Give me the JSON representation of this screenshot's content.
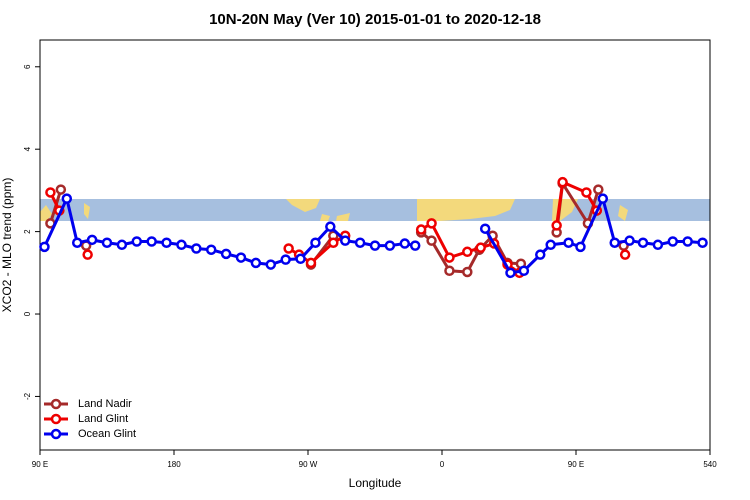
{
  "chart_data": {
    "type": "line",
    "title": "10N-20N May (Ver 10)   2015-01-01 to 2020-12-18",
    "xlabel": "Longitude",
    "ylabel": "XCO2 - MLO trend (ppm)",
    "xlim": [
      90,
      540
    ],
    "ylim": [
      -3.3,
      6.65
    ],
    "xticks": [
      {
        "value": 90,
        "label": "90 E"
      },
      180,
      {
        "value": 270,
        "label": "90 W"
      },
      {
        "value": 360,
        "label": "0"
      },
      {
        "value": 450,
        "label": "90 E"
      },
      540
    ],
    "yticks": [
      -2,
      0,
      2,
      4,
      6
    ],
    "legend": "lower left",
    "series": [
      {
        "name": "Land Nadir",
        "color": "#a52a2a",
        "x": [
          97,
          104,
          null,
          121,
          null,
          272,
          287,
          null,
          346,
          353,
          365,
          377,
          385,
          394,
          404,
          413,
          null,
          437,
          441,
          458,
          465,
          null,
          482
        ],
        "values": [
          2.2,
          3.02,
          null,
          1.66,
          null,
          1.2,
          1.9,
          null,
          1.98,
          1.78,
          1.05,
          1.02,
          1.56,
          1.9,
          1.24,
          1.22,
          null,
          1.98,
          3.17,
          2.2,
          3.02,
          null,
          1.66
        ]
      },
      {
        "name": "Land Glint",
        "color": "#ee0000",
        "x": [
          97,
          103,
          null,
          122,
          null,
          257,
          264,
          272,
          287,
          295,
          null,
          346,
          353,
          365,
          377,
          386,
          395,
          404,
          412,
          null,
          437,
          441,
          457,
          464,
          null,
          483
        ],
        "values": [
          2.95,
          2.51,
          null,
          1.44,
          null,
          1.59,
          1.44,
          1.24,
          1.73,
          1.9,
          null,
          2.05,
          2.2,
          1.37,
          1.51,
          1.61,
          1.71,
          1.2,
          1.0,
          null,
          2.15,
          3.2,
          2.95,
          2.51,
          null,
          1.44
        ]
      },
      {
        "name": "Ocean Glint",
        "color": "#0000ee",
        "x": [
          93,
          108,
          115,
          125,
          135,
          145,
          155,
          165,
          175,
          185,
          195,
          205,
          215,
          225,
          235,
          245,
          255,
          265,
          275,
          285,
          295,
          305,
          315,
          325,
          335,
          342,
          null,
          389,
          406,
          415,
          426,
          433,
          445,
          453,
          468,
          476,
          486,
          495,
          505,
          515,
          525,
          535
        ],
        "values": [
          1.63,
          2.8,
          1.73,
          1.8,
          1.73,
          1.68,
          1.76,
          1.76,
          1.73,
          1.68,
          1.59,
          1.56,
          1.46,
          1.37,
          1.24,
          1.2,
          1.32,
          1.34,
          1.73,
          2.12,
          1.78,
          1.73,
          1.66,
          1.66,
          1.71,
          1.66,
          null,
          2.07,
          1.0,
          1.05,
          1.44,
          1.68,
          1.73,
          1.63,
          2.8,
          1.73,
          1.78,
          1.73,
          1.68,
          1.76,
          1.76,
          1.73
        ]
      }
    ]
  }
}
